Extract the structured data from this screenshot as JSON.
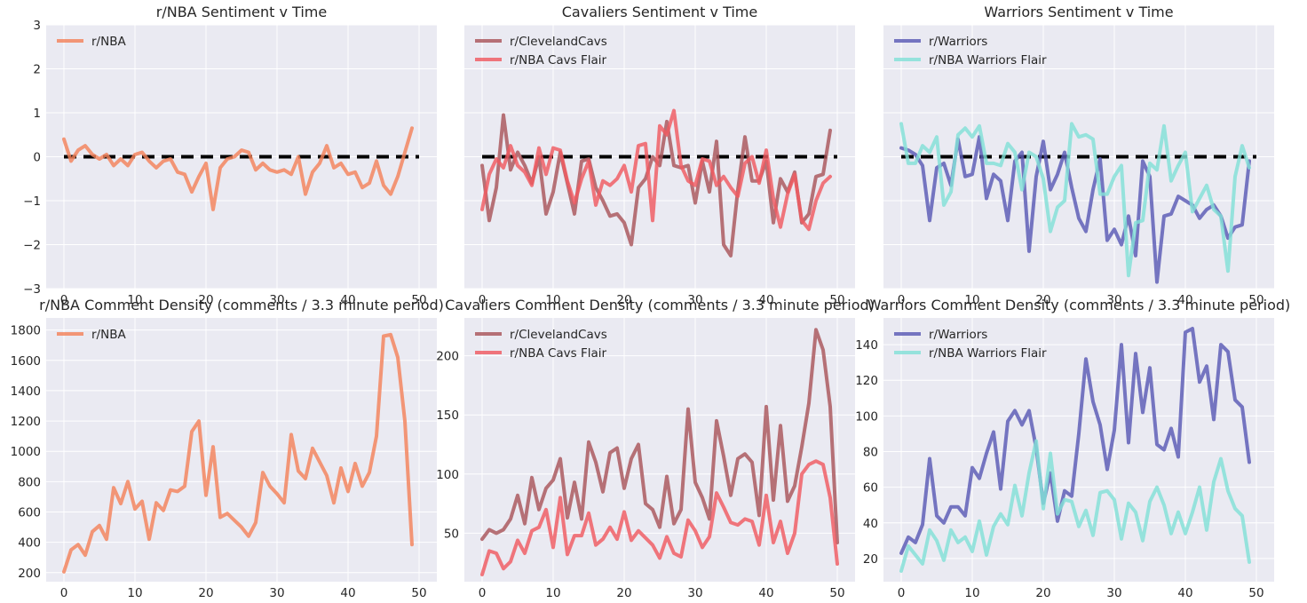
{
  "chart_data": [
    {
      "type": "line",
      "title": "r/NBA Sentiment v Time",
      "ylim": [
        -3,
        3
      ],
      "xlim": [
        -2.5,
        52.5
      ],
      "xticks": [
        0,
        10,
        20,
        30,
        40,
        50
      ],
      "yticks": [
        -3,
        -2,
        -1,
        0,
        1,
        2,
        3
      ],
      "ytick_labels": [
        "−3",
        "−2",
        "−1",
        "0",
        "1",
        "2",
        "3"
      ],
      "show_yticks": true,
      "zero_line": true,
      "legend": "top-left",
      "series": [
        {
          "name": "r/NBA",
          "color": "#f4835a",
          "values": [
            0.4,
            -0.1,
            0.15,
            0.25,
            0.05,
            -0.05,
            0.05,
            -0.2,
            -0.05,
            -0.2,
            0.05,
            0.1,
            -0.1,
            -0.25,
            -0.1,
            -0.05,
            -0.35,
            -0.4,
            -0.8,
            -0.45,
            -0.15,
            -1.2,
            -0.25,
            -0.05,
            0.0,
            0.15,
            0.1,
            -0.3,
            -0.15,
            -0.3,
            -0.35,
            -0.3,
            -0.4,
            0.0,
            -0.85,
            -0.35,
            -0.15,
            0.25,
            -0.25,
            -0.15,
            -0.4,
            -0.35,
            -0.7,
            -0.6,
            -0.1,
            -0.65,
            -0.85,
            -0.45,
            0.1,
            0.65
          ]
        }
      ]
    },
    {
      "type": "line",
      "title": "Cavaliers Sentiment v Time",
      "ylim": [
        -3,
        3
      ],
      "xlim": [
        -2.5,
        52.5
      ],
      "xticks": [
        0,
        10,
        20,
        30,
        40,
        50
      ],
      "yticks": [
        -3,
        -2,
        -1,
        0,
        1,
        2,
        3
      ],
      "ytick_labels": [],
      "show_yticks": false,
      "zero_line": true,
      "legend": "top-left",
      "series": [
        {
          "name": "r/ClevelandCavs",
          "color": "#a9565a",
          "values": [
            -0.2,
            -1.45,
            -0.7,
            0.95,
            -0.3,
            0.1,
            -0.2,
            -0.6,
            0.0,
            -1.3,
            -0.8,
            0.1,
            -0.6,
            -1.3,
            -0.1,
            -0.05,
            -0.7,
            -1.0,
            -1.35,
            -1.3,
            -1.5,
            -2.0,
            -0.7,
            -0.5,
            0.0,
            -0.2,
            0.8,
            -0.2,
            -0.25,
            -0.2,
            -1.05,
            -0.1,
            -0.8,
            0.35,
            -2.0,
            -2.25,
            -0.75,
            0.45,
            -0.55,
            -0.55,
            -0.1,
            -1.5,
            -0.5,
            -0.8,
            -0.35,
            -1.5,
            -1.3,
            -0.45,
            -0.4,
            0.6
          ]
        },
        {
          "name": "r/NBA Cavs Flair",
          "color": "#f05a60",
          "values": [
            -1.2,
            -0.4,
            -0.05,
            -0.25,
            0.25,
            -0.2,
            -0.35,
            -0.65,
            0.2,
            -0.4,
            0.2,
            0.15,
            -0.55,
            -1.05,
            -0.5,
            -0.1,
            -1.1,
            -0.55,
            -0.65,
            -0.5,
            -0.2,
            -0.8,
            0.25,
            0.3,
            -1.45,
            0.7,
            0.5,
            1.05,
            -0.2,
            -0.55,
            -0.65,
            -0.05,
            -0.1,
            -0.65,
            -0.45,
            -0.7,
            -0.9,
            -0.15,
            0.0,
            -0.6,
            0.15,
            -0.95,
            -1.6,
            -0.85,
            -0.4,
            -1.45,
            -1.65,
            -1.0,
            -0.6,
            -0.45
          ]
        }
      ]
    },
    {
      "type": "line",
      "title": "Warriors Sentiment v Time",
      "ylim": [
        -3,
        3
      ],
      "xlim": [
        -2.5,
        52.5
      ],
      "xticks": [
        0,
        10,
        20,
        30,
        40,
        50
      ],
      "yticks": [
        -3,
        -2,
        -1,
        0,
        1,
        2,
        3
      ],
      "ytick_labels": [],
      "show_yticks": false,
      "zero_line": true,
      "legend": "top-left",
      "series": [
        {
          "name": "r/Warriors",
          "color": "#5a5ab4",
          "values": [
            0.2,
            0.15,
            0.05,
            -0.2,
            -1.45,
            -0.25,
            -0.15,
            -0.65,
            0.4,
            -0.45,
            -0.4,
            0.45,
            -0.95,
            -0.4,
            -0.55,
            -1.45,
            -0.1,
            0.1,
            -2.15,
            -0.45,
            0.35,
            -0.75,
            -0.4,
            0.1,
            -0.7,
            -1.4,
            -1.7,
            -0.75,
            -0.05,
            -1.9,
            -1.65,
            -2.0,
            -1.35,
            -2.25,
            -0.1,
            -0.45,
            -2.85,
            -1.35,
            -1.3,
            -0.9,
            -1.0,
            -1.1,
            -1.4,
            -1.2,
            -1.1,
            -1.35,
            -1.85,
            -1.6,
            -1.55,
            -0.1
          ]
        },
        {
          "name": "r/NBA Warriors Flair",
          "color": "#82e1d7",
          "values": [
            0.75,
            -0.15,
            -0.15,
            0.25,
            0.1,
            0.45,
            -1.1,
            -0.8,
            0.5,
            0.65,
            0.45,
            0.7,
            -0.15,
            -0.15,
            -0.2,
            0.3,
            0.1,
            -0.75,
            0.1,
            0.0,
            -0.5,
            -1.7,
            -1.15,
            -1.0,
            0.75,
            0.45,
            0.5,
            0.4,
            -0.85,
            -0.85,
            -0.45,
            -0.2,
            -2.7,
            -1.5,
            -1.45,
            -0.15,
            -0.3,
            0.7,
            -0.55,
            -0.2,
            0.1,
            -1.25,
            -0.95,
            -0.65,
            -1.2,
            -1.35,
            -2.6,
            -0.45,
            0.25,
            -0.25
          ]
        }
      ]
    },
    {
      "type": "line",
      "title": "r/NBA Comment Density (comments / 3.3 minute period)",
      "ylim": [
        140,
        1880
      ],
      "xlim": [
        -2.5,
        52.5
      ],
      "xticks": [
        0,
        10,
        20,
        30,
        40,
        50
      ],
      "yticks": [
        200,
        400,
        600,
        800,
        1000,
        1200,
        1400,
        1600,
        1800
      ],
      "ytick_labels": [
        "200",
        "400",
        "600",
        "800",
        "1000",
        "1200",
        "1400",
        "1600",
        "1800"
      ],
      "show_yticks": true,
      "zero_line": false,
      "legend": "top-left",
      "series": [
        {
          "name": "r/NBA",
          "color": "#f4835a",
          "values": [
            205,
            350,
            385,
            315,
            470,
            510,
            420,
            760,
            655,
            800,
            620,
            670,
            420,
            660,
            610,
            745,
            735,
            770,
            1130,
            1200,
            710,
            1030,
            565,
            590,
            545,
            500,
            440,
            530,
            860,
            770,
            720,
            660,
            1110,
            870,
            820,
            1020,
            930,
            840,
            660,
            890,
            735,
            920,
            770,
            860,
            1100,
            1760,
            1770,
            1620,
            1200,
            385
          ]
        }
      ]
    },
    {
      "type": "line",
      "title": "Cavaliers Comment Density (comments / 3.3 minute period)",
      "ylim": [
        9,
        232
      ],
      "xlim": [
        -2.5,
        52.5
      ],
      "xticks": [
        0,
        10,
        20,
        30,
        40,
        50
      ],
      "yticks": [
        50,
        100,
        150,
        200
      ],
      "ytick_labels": [
        "50",
        "100",
        "150",
        "200"
      ],
      "show_yticks": true,
      "zero_line": false,
      "legend": "top-left",
      "series": [
        {
          "name": "r/ClevelandCavs",
          "color": "#a9565a",
          "values": [
            45,
            53,
            50,
            53,
            62,
            82,
            58,
            97,
            70,
            88,
            95,
            113,
            63,
            93,
            62,
            127,
            110,
            85,
            118,
            122,
            88,
            113,
            125,
            75,
            70,
            55,
            98,
            58,
            70,
            155,
            93,
            80,
            62,
            145,
            115,
            82,
            113,
            117,
            110,
            65,
            157,
            78,
            141,
            77,
            90,
            123,
            160,
            222,
            205,
            157,
            42
          ]
        },
        {
          "name": "r/NBA Cavs Flair",
          "color": "#f05a60",
          "values": [
            15,
            35,
            33,
            20,
            26,
            44,
            33,
            52,
            55,
            70,
            38,
            80,
            32,
            48,
            48,
            67,
            40,
            45,
            55,
            45,
            68,
            44,
            52,
            46,
            40,
            29,
            47,
            33,
            30,
            61,
            52,
            38,
            47,
            84,
            72,
            59,
            57,
            62,
            60,
            40,
            82,
            42,
            60,
            33,
            50,
            100,
            108,
            111,
            108,
            80,
            24
          ]
        }
      ]
    },
    {
      "type": "line",
      "title": "Warriors Comment Density (comments / 3.3 minute period)",
      "ylim": [
        7,
        155
      ],
      "xlim": [
        -2.5,
        52.5
      ],
      "xticks": [
        0,
        10,
        20,
        30,
        40,
        50
      ],
      "yticks": [
        20,
        40,
        60,
        80,
        100,
        120,
        140
      ],
      "ytick_labels": [
        "20",
        "40",
        "60",
        "80",
        "100",
        "120",
        "140"
      ],
      "show_yticks": true,
      "zero_line": false,
      "legend": "top-left",
      "series": [
        {
          "name": "r/Warriors",
          "color": "#5a5ab4",
          "values": [
            23,
            32,
            29,
            39,
            76,
            44,
            40,
            49,
            49,
            44,
            71,
            65,
            79,
            91,
            59,
            97,
            103,
            95,
            103,
            82,
            51,
            68,
            41,
            58,
            55,
            90,
            132,
            108,
            95,
            70,
            92,
            140,
            85,
            135,
            102,
            127,
            84,
            81,
            93,
            77,
            147,
            149,
            119,
            128,
            98,
            140,
            136,
            109,
            105,
            74
          ]
        },
        {
          "name": "r/NBA Warriors Flair",
          "color": "#82e1d7",
          "values": [
            13,
            27,
            22,
            17,
            36,
            30,
            19,
            36,
            29,
            32,
            24,
            41,
            22,
            38,
            45,
            39,
            61,
            44,
            68,
            86,
            48,
            79,
            45,
            53,
            52,
            38,
            47,
            33,
            57,
            58,
            53,
            31,
            51,
            46,
            30,
            52,
            60,
            50,
            34,
            46,
            34,
            46,
            60,
            36,
            63,
            76,
            58,
            48,
            44,
            18
          ]
        }
      ]
    }
  ]
}
